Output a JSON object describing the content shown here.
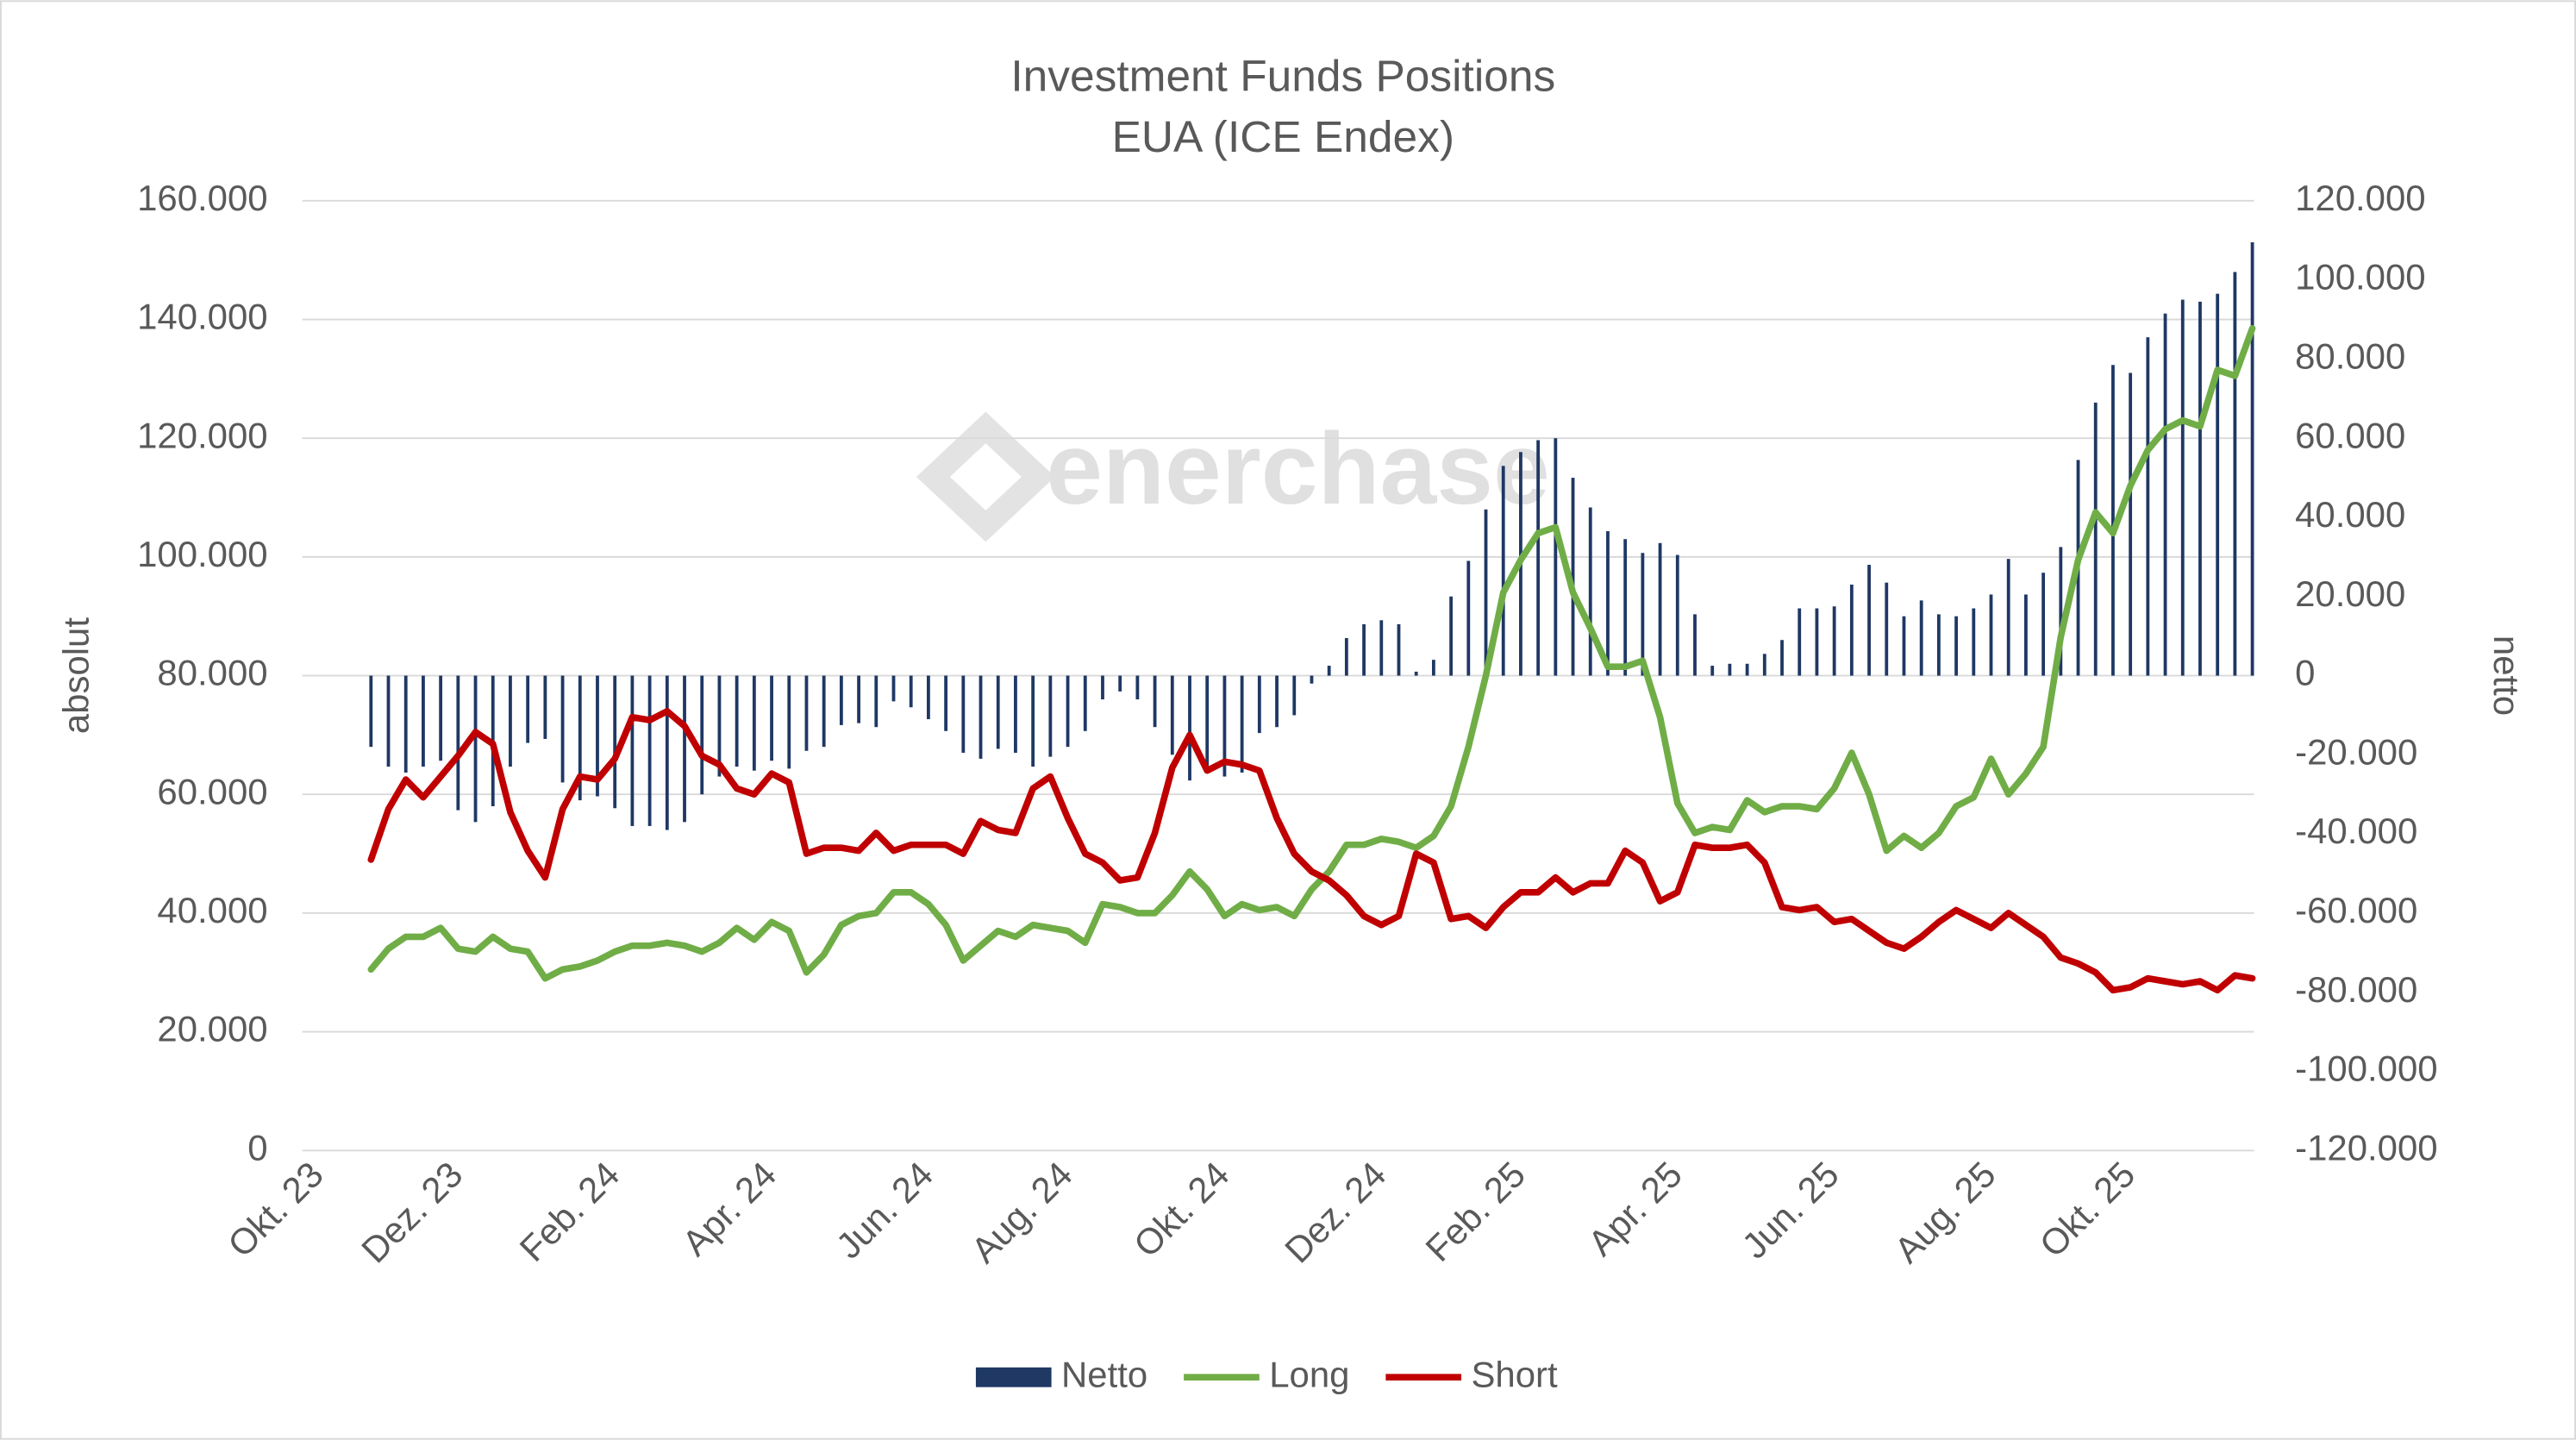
{
  "chart_data": {
    "type": "combo",
    "title": "Investment Funds Positions",
    "subtitle": "EUA (ICE Endex)",
    "ylabel": "absolut",
    "y2label": "netto",
    "watermark": "enerchase",
    "grid": true,
    "legend": "bottom",
    "categories": [
      "Okt. 23",
      null,
      null,
      null,
      null,
      null,
      null,
      null,
      "Dez. 23",
      null,
      null,
      null,
      null,
      null,
      null,
      null,
      null,
      "Feb. 24",
      null,
      null,
      null,
      null,
      null,
      null,
      null,
      null,
      "Apr. 24",
      null,
      null,
      null,
      null,
      null,
      null,
      null,
      null,
      "Jun. 24",
      null,
      null,
      null,
      null,
      null,
      null,
      null,
      "Aug. 24",
      null,
      null,
      null,
      null,
      null,
      null,
      null,
      null,
      "Okt. 24",
      null,
      null,
      null,
      null,
      null,
      null,
      null,
      null,
      "Dez. 24",
      null,
      null,
      null,
      null,
      null,
      null,
      null,
      "Feb. 25",
      null,
      null,
      null,
      null,
      null,
      null,
      null,
      null,
      "Apr. 25",
      null,
      null,
      null,
      null,
      null,
      null,
      null,
      null,
      "Jun. 25",
      null,
      null,
      null,
      null,
      null,
      null,
      null,
      null,
      "Aug. 25",
      null,
      null,
      null,
      null,
      null,
      null,
      null,
      "Okt. 25",
      null,
      null,
      null,
      null,
      null,
      null,
      null
    ],
    "ylim": [
      0,
      160000
    ],
    "yticks": [
      0,
      {
        "value": 20000,
        "label": "20.000"
      },
      {
        "value": 40000,
        "label": "40.000"
      },
      {
        "value": 60000,
        "label": "60.000"
      },
      {
        "value": 80000,
        "label": "80.000"
      },
      {
        "value": 100000,
        "label": "100.000"
      },
      {
        "value": 120000,
        "label": "120.000"
      },
      {
        "value": 140000,
        "label": "140.000"
      },
      {
        "value": 160000,
        "label": "160.000"
      }
    ],
    "y2lim": [
      -120000,
      120000
    ],
    "y2ticks": [
      {
        "value": -120000,
        "label": "-120.000"
      },
      {
        "value": -100000,
        "label": "-100.000"
      },
      {
        "value": -80000,
        "label": "-80.000"
      },
      {
        "value": -60000,
        "label": "-60.000"
      },
      {
        "value": -40000,
        "label": "-40.000"
      },
      {
        "value": -20000,
        "label": "-20.000"
      },
      0,
      {
        "value": 20000,
        "label": "20.000"
      },
      {
        "value": 40000,
        "label": "40.000"
      },
      {
        "value": 60000,
        "label": "60.000"
      },
      {
        "value": 80000,
        "label": "80.000"
      },
      {
        "value": 100000,
        "label": "100.000"
      },
      {
        "value": 120000,
        "label": "120.000"
      }
    ],
    "series": [
      {
        "name": "Netto",
        "type": "bar",
        "axis": "y2",
        "color": "#1f3864",
        "values": [
          null,
          null,
          null,
          -18000,
          -23000,
          -24500,
          -23000,
          -21500,
          -34000,
          -37000,
          -33000,
          -23000,
          -17000,
          -16000,
          -27000,
          -31500,
          -30500,
          -33500,
          -38000,
          -38000,
          -39000,
          -37000,
          -30000,
          -25500,
          -23000,
          -24000,
          -21500,
          -23500,
          -19000,
          -18000,
          -12500,
          -12000,
          -13000,
          -6500,
          -8000,
          -11000,
          -14000,
          -19500,
          -21000,
          -18500,
          -19500,
          -23000,
          -20500,
          -18000,
          -14000,
          -6000,
          -4000,
          -6000,
          -13000,
          -20000,
          -26500,
          -23500,
          -25500,
          -24500,
          -14500,
          -13000,
          -10000,
          -2000,
          2500,
          9500,
          13000,
          14000,
          13000,
          1000,
          4000,
          20000,
          29000,
          42000,
          53000,
          56500,
          59500,
          60000,
          50000,
          42500,
          36500,
          34500,
          31000,
          33500,
          30500,
          15500,
          2500,
          3000,
          3000,
          5500,
          9000,
          17000,
          17000,
          17500,
          23000,
          28000,
          23500,
          15000,
          19000,
          15500,
          15000,
          17000,
          20500,
          29500,
          20500,
          26000,
          32500,
          54500,
          69000,
          78500,
          76500,
          85500,
          91500,
          95000,
          94500,
          96500,
          102000,
          109500
        ]
      },
      {
        "name": "Long",
        "type": "line",
        "color": "#70ad47",
        "values": [
          null,
          null,
          null,
          30500,
          34000,
          36000,
          36000,
          37500,
          34000,
          33500,
          36000,
          34000,
          33500,
          29000,
          30500,
          31000,
          32000,
          33500,
          34500,
          34500,
          35000,
          34500,
          33500,
          35000,
          37500,
          35500,
          38500,
          37000,
          30000,
          33000,
          38000,
          39500,
          40000,
          43500,
          43500,
          41500,
          38000,
          32000,
          34500,
          37000,
          36000,
          38000,
          37500,
          37000,
          35000,
          41500,
          41000,
          40000,
          40000,
          43000,
          47000,
          44000,
          39500,
          41500,
          40500,
          41000,
          39500,
          44000,
          47000,
          51500,
          51500,
          52500,
          52000,
          51000,
          53000,
          58000,
          68000,
          80000,
          94000,
          99500,
          104000,
          105000,
          94000,
          88000,
          81500,
          81500,
          82500,
          73000,
          58500,
          53500,
          54500,
          54000,
          59000,
          57000,
          58000,
          58000,
          57500,
          61000,
          67000,
          60000,
          50500,
          53000,
          51000,
          53500,
          58000,
          59500,
          66000,
          60000,
          63500,
          68000,
          86500,
          99500,
          107500,
          104000,
          112000,
          118000,
          121500,
          123000,
          122000,
          131500,
          130500,
          138500
        ]
      },
      {
        "name": "Short",
        "type": "line",
        "color": "#c00000",
        "values": [
          null,
          null,
          null,
          49000,
          57500,
          62500,
          59500,
          63000,
          66500,
          70500,
          68500,
          57000,
          50500,
          46000,
          57500,
          63000,
          62500,
          66000,
          73000,
          72500,
          74000,
          71500,
          66500,
          65000,
          61000,
          60000,
          63500,
          62000,
          50000,
          51000,
          51000,
          50500,
          53500,
          50500,
          51500,
          51500,
          51500,
          50000,
          55500,
          54000,
          53500,
          61000,
          63000,
          56000,
          50000,
          48500,
          45500,
          46000,
          53500,
          64500,
          70000,
          64000,
          65500,
          65000,
          64000,
          56000,
          50000,
          47000,
          45500,
          43000,
          39500,
          38000,
          39500,
          50000,
          48500,
          39000,
          39500,
          37500,
          41000,
          43500,
          43500,
          46000,
          43500,
          45000,
          45000,
          50500,
          48500,
          42000,
          43500,
          51500,
          51000,
          51000,
          51500,
          48500,
          41000,
          40500,
          41000,
          38500,
          39000,
          37000,
          35000,
          34000,
          36000,
          38500,
          40500,
          39000,
          37500,
          40000,
          38000,
          36000,
          32500,
          31500,
          30000,
          27000,
          27500,
          29000,
          28500,
          28000,
          28500,
          27000,
          29500,
          29000
        ]
      }
    ]
  }
}
